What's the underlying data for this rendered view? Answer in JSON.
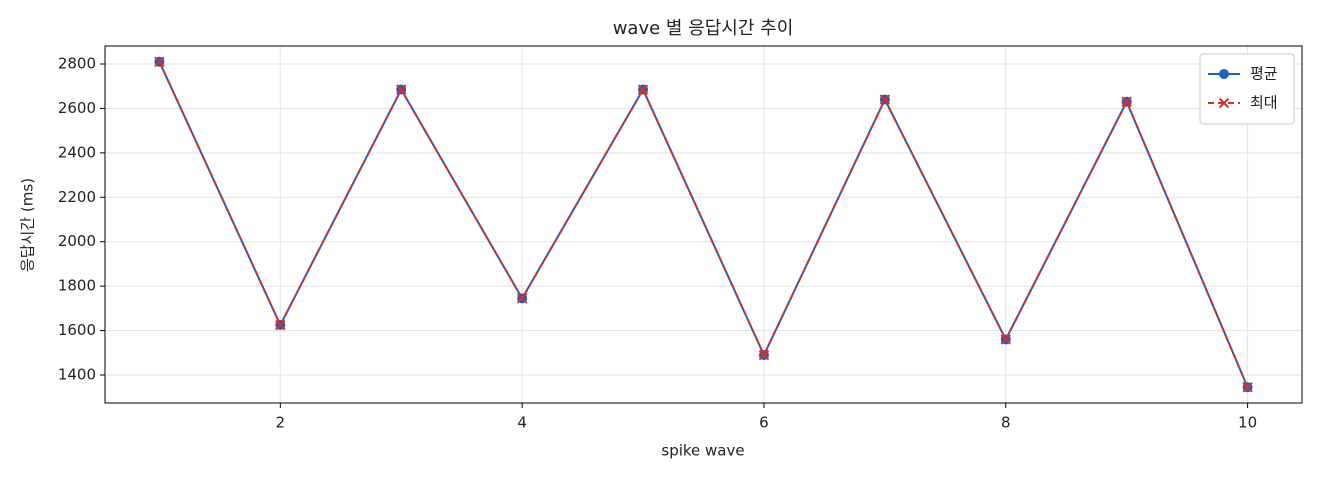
{
  "chart_data": {
    "type": "line",
    "title": "wave 별 응답시간 추이",
    "xlabel": "spike wave",
    "ylabel": "응답시간 (ms)",
    "x": [
      1,
      2,
      3,
      4,
      5,
      6,
      7,
      8,
      9,
      10
    ],
    "series": [
      {
        "name": "평균",
        "color": "#1f5fbf",
        "marker": "o",
        "linestyle": "solid",
        "values": [
          2810,
          1625,
          2685,
          1745,
          2685,
          1490,
          2640,
          1560,
          2630,
          1345
        ]
      },
      {
        "name": "최대",
        "color": "#d0312d",
        "marker": "x",
        "linestyle": "dashed",
        "values": [
          2810,
          1625,
          2685,
          1745,
          2685,
          1490,
          2640,
          1560,
          2630,
          1345
        ]
      }
    ],
    "xlim": [
      0.55,
      10.45
    ],
    "ylim": [
      1274,
      2881
    ],
    "xticks": [
      2,
      4,
      6,
      8,
      10
    ],
    "yticks": [
      1400,
      1600,
      1800,
      2000,
      2200,
      2400,
      2600,
      2800
    ],
    "grid": true,
    "legend": "upper right"
  }
}
